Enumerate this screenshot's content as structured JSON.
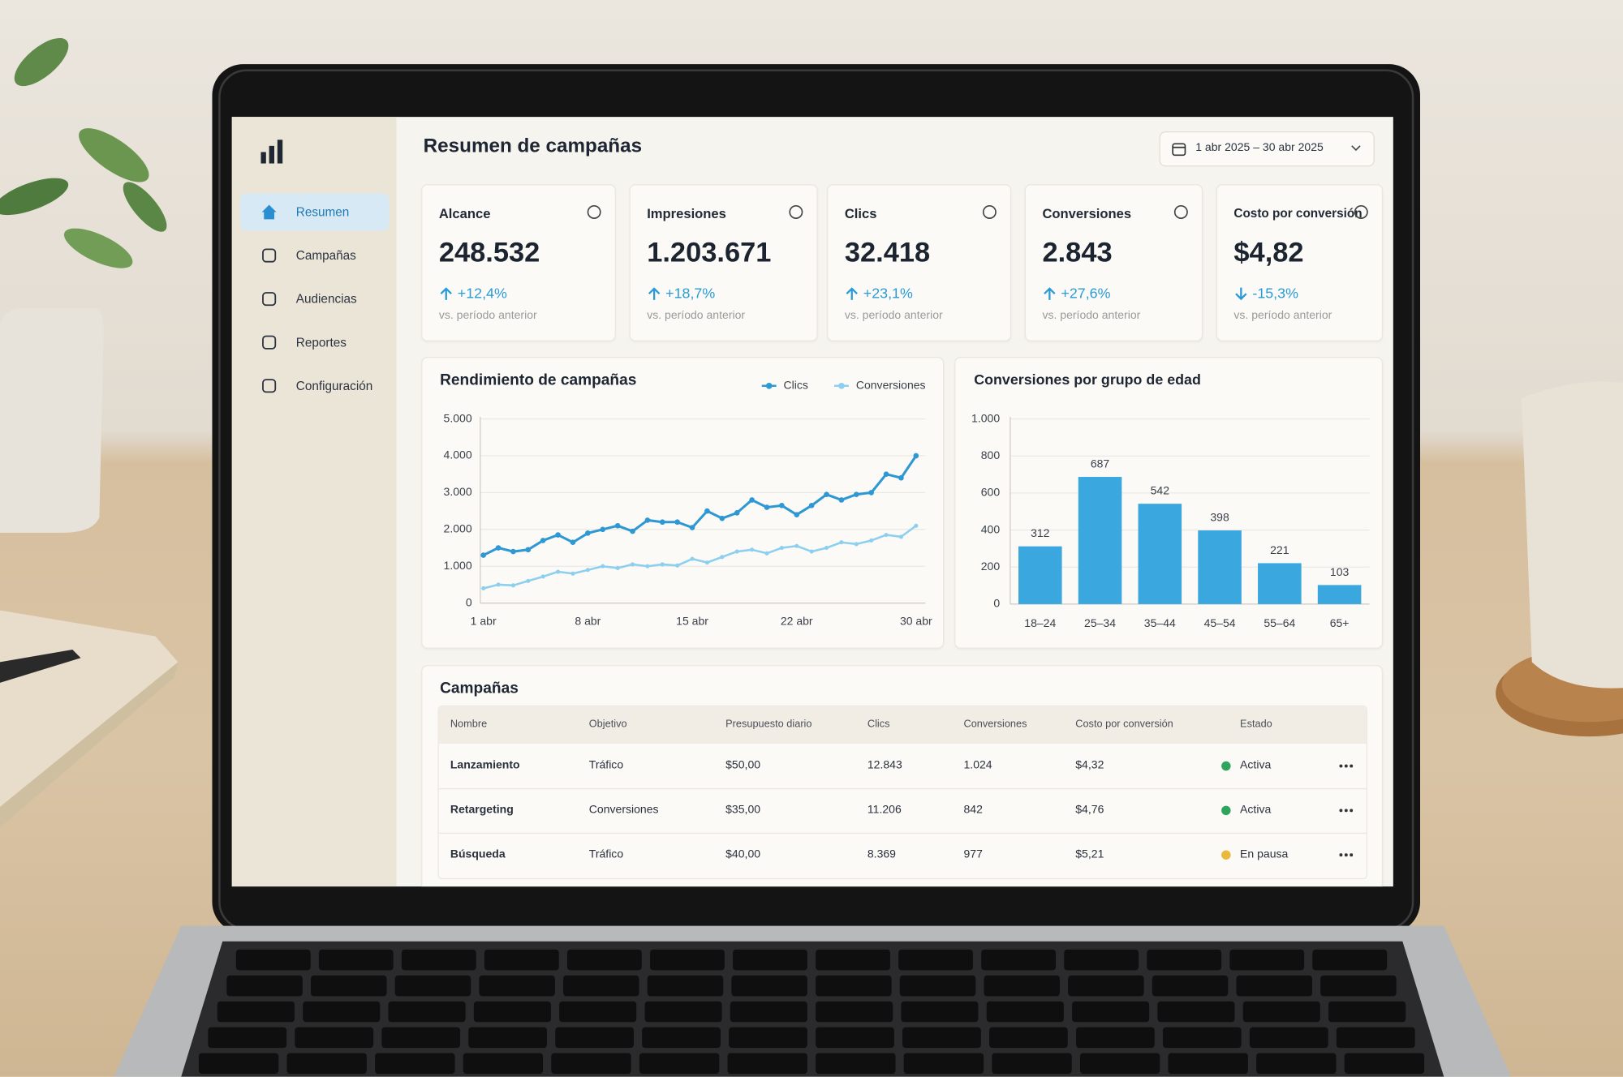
{
  "sidebar": {
    "items": [
      "Resumen",
      "Campañas",
      "Audiencias",
      "Reportes",
      "Configuración"
    ]
  },
  "header": {
    "title": "Resumen de campañas",
    "date_range": "1 abr 2025 – 30 abr 2025"
  },
  "kpis": [
    {
      "label": "Alcance",
      "value": "248.532",
      "change": "+12,4%",
      "note": "vs. período anterior"
    },
    {
      "label": "Impresiones",
      "value": "1.203.671",
      "change": "+18,7%",
      "note": "vs. período anterior"
    },
    {
      "label": "Clics",
      "value": "32.418",
      "change": "+23,1%",
      "note": "vs. período anterior"
    },
    {
      "label": "Conversiones",
      "value": "2.843",
      "change": "+27,6%",
      "note": "vs. período anterior"
    },
    {
      "label": "Costo por conversión",
      "value": "$4,82",
      "change": "-15,3%",
      "note": "vs. período anterior"
    }
  ],
  "chart_data": [
    {
      "type": "line",
      "title": "Rendimiento de campañas",
      "categories": [
        "1 abr",
        null,
        null,
        null,
        null,
        null,
        null,
        "8 abr",
        null,
        null,
        null,
        null,
        null,
        null,
        "15 abr",
        null,
        null,
        null,
        null,
        null,
        null,
        "22 abr",
        null,
        null,
        null,
        null,
        null,
        null,
        null,
        "30 abr"
      ],
      "series": [
        {
          "name": "Clics",
          "color": "#2e98d4",
          "values": [
            1300,
            1500,
            1400,
            1450,
            1700,
            1850,
            1650,
            1900,
            2000,
            2100,
            1950,
            2250,
            2200,
            2200,
            2050,
            2500,
            2300,
            2450,
            2800,
            2600,
            2650,
            2400,
            2650,
            2950,
            2800,
            2950,
            3000,
            3500,
            3400,
            4000
          ]
        },
        {
          "name": "Conversiones",
          "color": "#8ccfee",
          "values": [
            400,
            500,
            480,
            600,
            720,
            850,
            800,
            900,
            1000,
            950,
            1050,
            1000,
            1050,
            1020,
            1200,
            1100,
            1250,
            1400,
            1450,
            1350,
            1500,
            1550,
            1400,
            1500,
            1650,
            1600,
            1700,
            1850,
            1800,
            2100
          ]
        }
      ],
      "ylim": [
        0,
        5000
      ],
      "yticks": [
        0,
        {
          "value": 1000,
          "label": "1.000"
        },
        {
          "value": 2000,
          "label": "2.000"
        },
        {
          "value": 3000,
          "label": "3.000"
        },
        {
          "value": 4000,
          "label": "4.000"
        },
        {
          "value": 5000,
          "label": "5.000"
        }
      ],
      "grid": true
    },
    {
      "type": "bar",
      "title": "Conversiones por grupo de edad",
      "categories": [
        "18–24",
        "25–34",
        "35–44",
        "45–54",
        "55–64",
        "65+"
      ],
      "values": [
        312,
        687,
        542,
        398,
        221,
        103
      ],
      "color": "#3aa7df",
      "ylim": [
        0,
        1000
      ],
      "yticks": [
        0,
        200,
        400,
        600,
        800,
        {
          "value": 1000,
          "label": "1.000"
        }
      ],
      "grid": true
    }
  ],
  "table": {
    "title": "Campañas",
    "columns": [
      "Nombre",
      "Objetivo",
      "Presupuesto diario",
      "Clics",
      "Conversiones",
      "Costo por conversión",
      "Estado"
    ],
    "rows": [
      [
        "Lanzamiento",
        "Tráfico",
        "$50,00",
        "12.843",
        "1.024",
        "$4,32",
        "Activa"
      ],
      [
        "Retargeting",
        "Conversiones",
        "$35,00",
        "11.206",
        "842",
        "$4,76",
        "Activa"
      ],
      [
        "Búsqueda",
        "Tráfico",
        "$40,00",
        "8.369",
        "977",
        "$5,21",
        "En pausa"
      ]
    ],
    "status_colors": [
      "#2fa45c",
      "#2fa45c",
      "#e9b93c"
    ]
  }
}
